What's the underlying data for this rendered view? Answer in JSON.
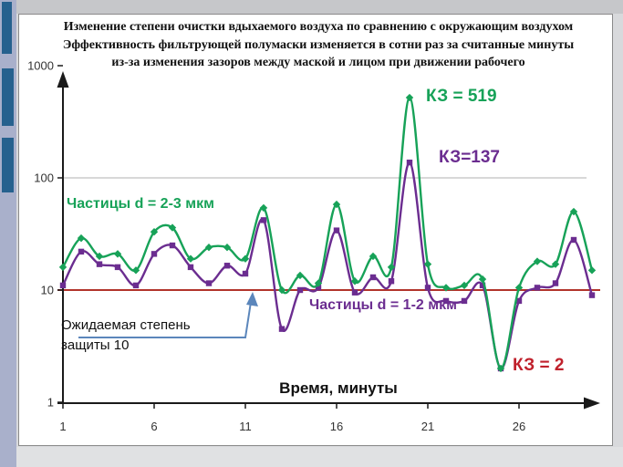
{
  "slide": {
    "title_lines": [
      "Изменение степени очистки вдыхаемого воздуха по сравнению с окружающим воздухом",
      "Эффективность фильтрующей полумаски изменяется в сотни раз за считанные минуты",
      "из-за изменения зазоров между маской и лицом при движении рабочего"
    ]
  },
  "annotations": {
    "series1_label": "Частицы d = 2-3 мкм",
    "series2_label": "Частицы d = 1-2 мкм",
    "kz519": "КЗ = 519",
    "kz137": "КЗ=137",
    "kz2": "КЗ = 2",
    "expected_line1": "Ожидаемая степень",
    "expected_line2": "защиты 10",
    "xlabel": "Время, минуты"
  },
  "colors": {
    "green": "#17a258",
    "purple": "#6b2d90",
    "red_line": "#b2342b",
    "red_text": "#c0212c",
    "blue_callout": "#5b86bb",
    "grid": "#b0b0b0",
    "axis": "#1a1a1a",
    "tick_text": "#333333"
  },
  "chart_data": {
    "type": "line",
    "x_axis_label": "Время, минуты",
    "y_scale": "log",
    "ylim": [
      1,
      1000
    ],
    "y_ticks": [
      1,
      10,
      100,
      1000
    ],
    "x_ticks": [
      1,
      6,
      11,
      16,
      21,
      26
    ],
    "gridlines_at": [
      100
    ],
    "x": [
      1,
      2,
      3,
      4,
      5,
      6,
      7,
      8,
      9,
      10,
      11,
      12,
      13,
      14,
      15,
      16,
      17,
      18,
      19,
      20,
      21,
      22,
      23,
      24,
      25,
      26,
      27,
      28,
      29,
      30
    ],
    "series": [
      {
        "name": "Частицы d = 2-3 мкм",
        "marker": "diamond",
        "peak_label": "КЗ = 519",
        "values": [
          16,
          29,
          20,
          21,
          15,
          33,
          36,
          19,
          24,
          24,
          19,
          54,
          10,
          13.5,
          11.5,
          58,
          12,
          20,
          16,
          519,
          17,
          10.5,
          11,
          12.5,
          2,
          10.5,
          18,
          17,
          50,
          15
        ]
      },
      {
        "name": "Частицы d = 1-2 мкм",
        "marker": "square",
        "peak_label": "КЗ=137",
        "values": [
          11,
          22,
          17,
          16,
          11,
          21,
          25,
          16,
          11.5,
          16.5,
          14,
          42,
          4.5,
          10,
          10.5,
          34,
          9.5,
          13,
          12,
          137,
          10.5,
          8,
          8,
          11,
          2,
          8,
          10.5,
          11.5,
          28,
          9
        ]
      }
    ],
    "reference_line": {
      "value": 10,
      "label": "Ожидаемая степень защиты 10"
    },
    "min_annotation": {
      "x": 25,
      "value": 2,
      "label": "КЗ = 2"
    }
  }
}
